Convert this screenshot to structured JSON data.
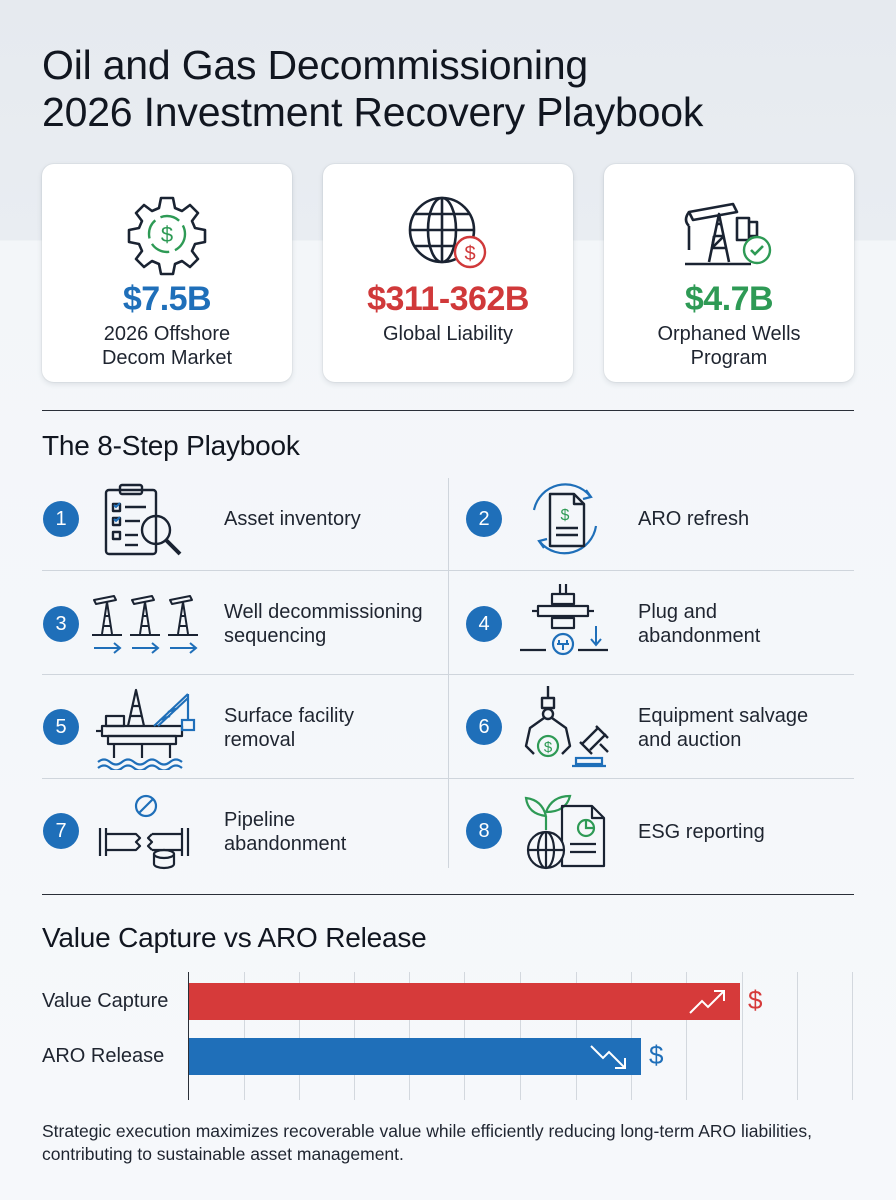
{
  "title": {
    "line1": "Oil and Gas Decommissioning",
    "line2": "2026 Investment Recovery Playbook"
  },
  "stats": [
    {
      "value": "$7.5B",
      "label1": "2026 Offshore",
      "label2": "Decom Market",
      "color": "#1f6fb9",
      "icon": "gear-dollar-icon"
    },
    {
      "value": "$311-362B",
      "label1": "Global Liability",
      "label2": "",
      "color": "#d0393a",
      "icon": "globe-dollar-icon"
    },
    {
      "value": "$4.7B",
      "label1": "Orphaned Wells",
      "label2": "Program",
      "color": "#2e9a55",
      "icon": "pumpjack-check-icon"
    }
  ],
  "playbook": {
    "heading": "The 8-Step Playbook",
    "steps": [
      {
        "num": "1",
        "line1": "Asset inventory",
        "line2": "",
        "icon": "clipboard-search-icon"
      },
      {
        "num": "2",
        "line1": "ARO refresh",
        "line2": "",
        "icon": "document-refresh-icon"
      },
      {
        "num": "3",
        "line1": "Well decommissioning",
        "line2": "sequencing",
        "icon": "well-sequence-icon"
      },
      {
        "num": "4",
        "line1": "Plug and",
        "line2": "abandonment",
        "icon": "wellhead-plug-icon"
      },
      {
        "num": "5",
        "line1": "Surface facility",
        "line2": "removal",
        "icon": "offshore-platform-crane-icon"
      },
      {
        "num": "6",
        "line1": "Equipment salvage",
        "line2": "and auction",
        "icon": "claw-gavel-icon"
      },
      {
        "num": "7",
        "line1": "Pipeline",
        "line2": "abandonment",
        "icon": "pipeline-cut-icon"
      },
      {
        "num": "8",
        "line1": "ESG reporting",
        "line2": "",
        "icon": "leaf-globe-report-icon"
      }
    ]
  },
  "chart_data": {
    "type": "bar",
    "title": "Value Capture vs ARO Release",
    "categories": [
      "Value Capture",
      "ARO Release"
    ],
    "values": [
      0.83,
      0.68
    ],
    "colors": [
      "#d63a3a",
      "#1f6fb9"
    ],
    "annotations": [
      "trend-up-icon",
      "trend-down-icon"
    ],
    "dollar_sign": "$",
    "grid": true,
    "orientation": "horizontal"
  },
  "footnote": "Strategic execution maximizes recoverable value while efficiently reducing long-term ARO liabilities, contributing to sustainable asset management."
}
